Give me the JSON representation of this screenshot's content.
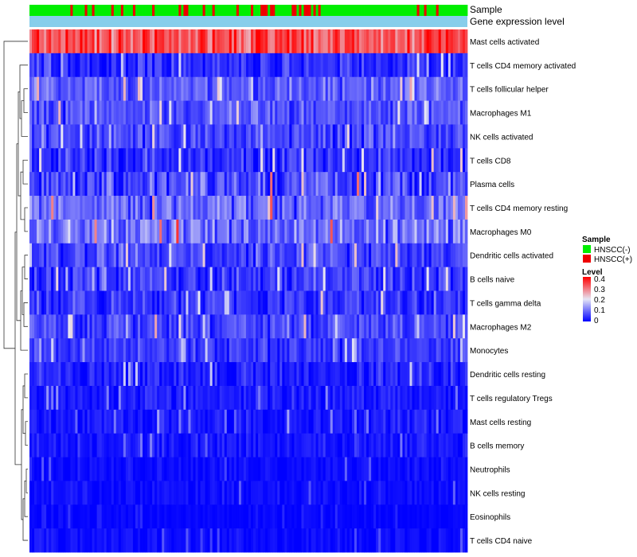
{
  "chart_data": {
    "type": "heatmap",
    "title": "",
    "annotation_tracks": [
      "Sample",
      "Gene expression level"
    ],
    "rows": [
      "Mast cells activated",
      "T cells CD4 memory activated",
      "T cells follicular helper",
      "Macrophages M1",
      "NK cells activated",
      "T cells CD8",
      "Plasma cells",
      "T cells CD4 memory resting",
      "Macrophages M0",
      "Dendritic cells activated",
      "B cells naive",
      "T cells gamma delta",
      "Macrophages M2",
      "Monocytes",
      "Dendritic cells resting",
      "T cells regulatory  Tregs",
      "Mast cells resting",
      "B cells memory",
      "Neutrophils",
      "NK cells resting",
      "Eosinophils",
      "T cells CD4 naive"
    ],
    "row_mean_levels": [
      0.33,
      0.04,
      0.08,
      0.07,
      0.06,
      0.04,
      0.06,
      0.09,
      0.1,
      0.06,
      0.05,
      0.05,
      0.06,
      0.05,
      0.03,
      0.02,
      0.02,
      0.02,
      0.01,
      0.01,
      0.005,
      0.01
    ],
    "row_variability": [
      0.08,
      0.05,
      0.05,
      0.05,
      0.05,
      0.05,
      0.07,
      0.06,
      0.07,
      0.05,
      0.05,
      0.05,
      0.05,
      0.04,
      0.04,
      0.03,
      0.03,
      0.03,
      0.02,
      0.02,
      0.01,
      0.02
    ],
    "n_samples": 182,
    "sample_groups": {
      "HNSCC(-)": 152,
      "HNSCC(+)": 30
    },
    "legend": {
      "sample_title": "Sample",
      "sample_entries": [
        {
          "label": "HNSCC(-)",
          "color": "#00ee00"
        },
        {
          "label": "HNSCC(+)",
          "color": "#ee0000"
        }
      ],
      "level_title": "Level",
      "level_ticks": [
        "0.4",
        "0.3",
        "0.2",
        "0.1",
        "0"
      ],
      "level_range": [
        0,
        0.4
      ]
    },
    "colors": {
      "low": "#0000ff",
      "mid": "#e6e6f5",
      "high": "#ff0000",
      "expression_track": "#87ceeb",
      "sample_negative": "#00ee00",
      "sample_positive": "#ee0000"
    }
  }
}
